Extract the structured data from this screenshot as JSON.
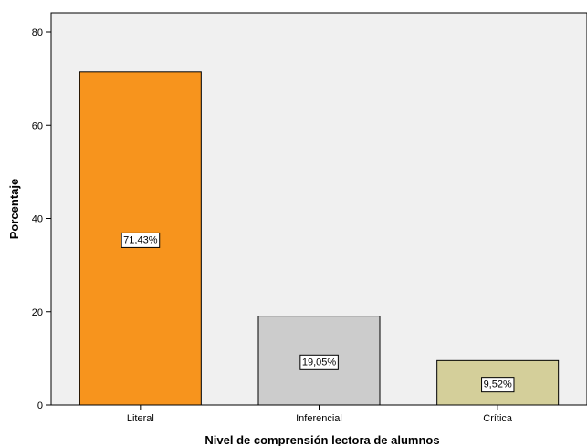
{
  "chart_data": {
    "type": "bar",
    "title": "",
    "xlabel": "Nivel de comprensión lectora de alumnos",
    "ylabel": "Porcentaje",
    "categories": [
      "Literal",
      "Inferencial",
      "Crítica"
    ],
    "values": [
      71.43,
      19.05,
      9.52
    ],
    "data_labels": [
      "71,43%",
      "19,05%",
      "9,52%"
    ],
    "colors": [
      "#f7941d",
      "#cccccc",
      "#d4cf9a"
    ],
    "ylim": [
      0,
      80
    ],
    "yticks": [
      0,
      20,
      40,
      60,
      80
    ],
    "grid": false,
    "plot_background": "#f0f0f0",
    "legend": "none"
  }
}
